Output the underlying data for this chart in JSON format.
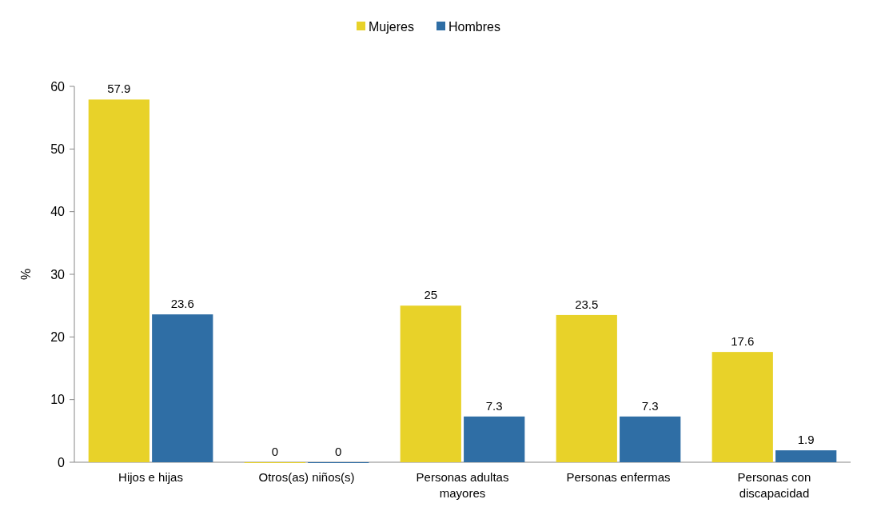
{
  "chart_data": {
    "type": "bar",
    "categories": [
      "Hijos e hijas",
      "Otros(as) niños(s)",
      "Personas adultas mayores",
      "Personas enfermas",
      "Personas con discapacidad"
    ],
    "series": [
      {
        "name": "Mujeres",
        "color": "#e8d229",
        "values": [
          57.9,
          0,
          25,
          23.5,
          17.6
        ]
      },
      {
        "name": "Hombres",
        "color": "#2f6ea5",
        "values": [
          23.6,
          0,
          7.3,
          7.3,
          1.9
        ]
      }
    ],
    "ylabel": "%",
    "ylim": [
      0,
      60
    ],
    "yticks": [
      0,
      10,
      20,
      30,
      40,
      50,
      60
    ],
    "data_labels": true,
    "legend": "top",
    "grid": false
  }
}
